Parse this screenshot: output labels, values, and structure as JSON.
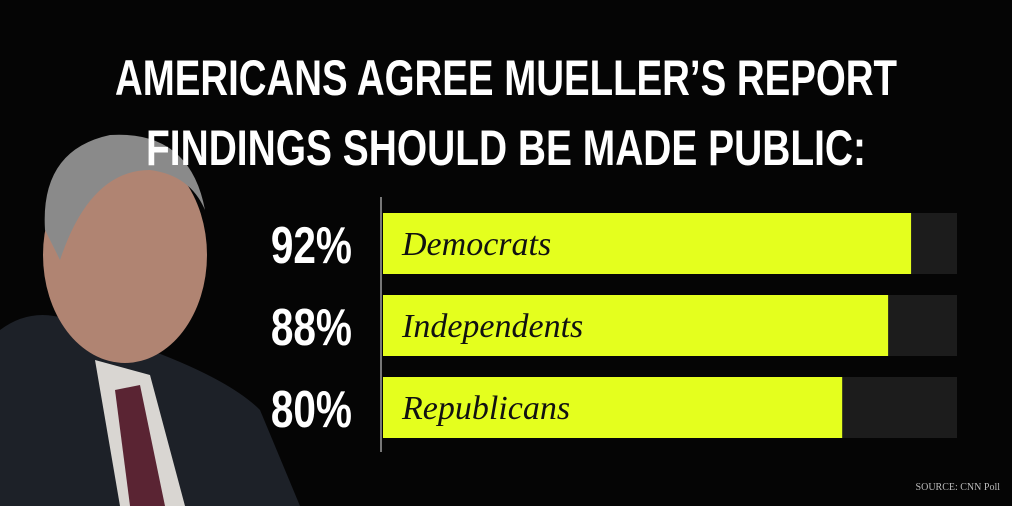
{
  "chart_data": {
    "type": "bar",
    "orientation": "horizontal",
    "title": [
      "AMERICANS AGREE MUELLER’S REPORT",
      "FINDINGS SHOULD BE MADE PUBLIC:"
    ],
    "categories": [
      "Democrats",
      "Independents",
      "Republicans"
    ],
    "values": [
      92,
      88,
      80
    ],
    "value_labels": [
      "92%",
      "88%",
      "80%"
    ],
    "color": "#e4ff1e",
    "xlim": [
      0,
      100
    ],
    "source": "SOURCE: CNN Poll"
  }
}
